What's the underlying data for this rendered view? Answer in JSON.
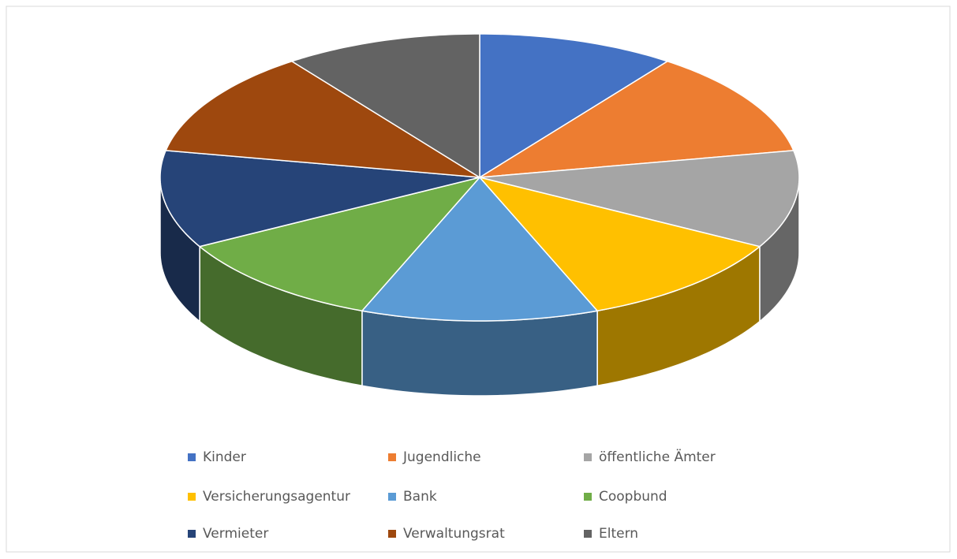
{
  "chart_data": {
    "type": "pie3d",
    "categories": [
      "Kinder",
      "Jugendliche",
      "öffentliche Ämter",
      "Versicherungsagentur",
      "Bank",
      "Coopbund",
      "Vermieter",
      "Verwaltungsrat",
      "Eltern"
    ],
    "values": [
      10,
      12,
      11,
      11,
      12,
      11,
      11,
      12,
      10
    ],
    "colors": [
      "#4472c4",
      "#ed7d31",
      "#a5a5a5",
      "#ffc000",
      "#5b9bd5",
      "#70ad47",
      "#264478",
      "#9e480e",
      "#636363"
    ],
    "legend": "bottom"
  }
}
